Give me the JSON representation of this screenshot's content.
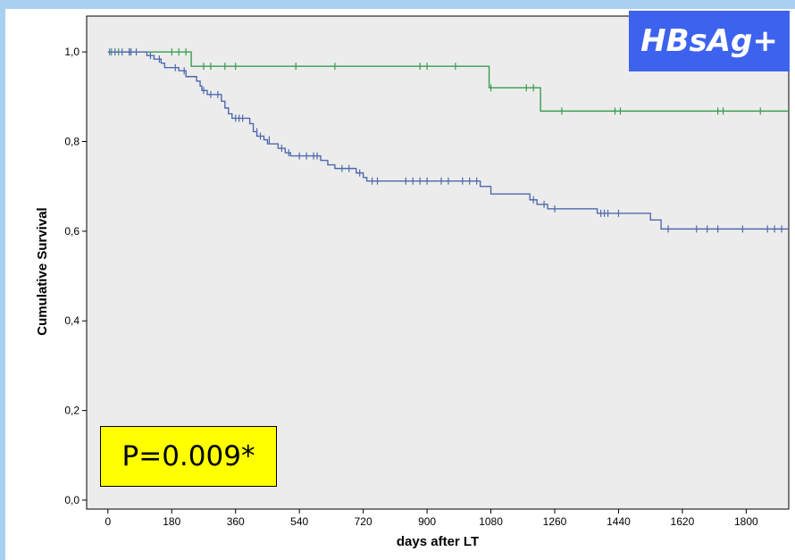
{
  "badge": {
    "text": "HBsAg+",
    "color": "#3d63ee"
  },
  "pvalue_box": {
    "text": "P=0.009*",
    "color": "#ffff00"
  },
  "chart_data": {
    "type": "line",
    "subtype": "kaplan-meier step curves with censoring marks",
    "xlabel": "days after LT",
    "ylabel": "Cumulative Survival",
    "xlim": [
      -60,
      1920
    ],
    "ylim": [
      -0.02,
      1.08
    ],
    "x_ticks": [
      0,
      180,
      360,
      540,
      720,
      900,
      1080,
      1260,
      1440,
      1620,
      1800
    ],
    "y_ticks": [
      0.0,
      0.2,
      0.4,
      0.6,
      0.8,
      1.0
    ],
    "y_tick_labels": [
      "0,0",
      "0,2",
      "0,4",
      "0,6",
      "0,8",
      "1,0"
    ],
    "grid": false,
    "legend": "none",
    "plot_background": "#ececec",
    "series": [
      {
        "color": "#3b9b50",
        "steps": [
          [
            0,
            1.0
          ],
          [
            235,
            0.968
          ],
          [
            1075,
            0.92
          ],
          [
            1220,
            0.868
          ],
          [
            1920,
            0.868
          ]
        ],
        "censored": [
          [
            10,
            1.0
          ],
          [
            30,
            1.0
          ],
          [
            60,
            1.0
          ],
          [
            180,
            1.0
          ],
          [
            200,
            1.0
          ],
          [
            220,
            1.0
          ],
          [
            270,
            0.968
          ],
          [
            290,
            0.968
          ],
          [
            330,
            0.968
          ],
          [
            360,
            0.968
          ],
          [
            530,
            0.968
          ],
          [
            640,
            0.968
          ],
          [
            880,
            0.968
          ],
          [
            900,
            0.968
          ],
          [
            980,
            0.968
          ],
          [
            1080,
            0.92
          ],
          [
            1180,
            0.92
          ],
          [
            1200,
            0.92
          ],
          [
            1280,
            0.868
          ],
          [
            1430,
            0.868
          ],
          [
            1445,
            0.868
          ],
          [
            1720,
            0.868
          ],
          [
            1735,
            0.868
          ],
          [
            1840,
            0.868
          ]
        ]
      },
      {
        "color": "#4f69ad",
        "steps": [
          [
            0,
            1.0
          ],
          [
            110,
            0.992
          ],
          [
            130,
            0.984
          ],
          [
            150,
            0.975
          ],
          [
            160,
            0.965
          ],
          [
            200,
            0.958
          ],
          [
            220,
            0.945
          ],
          [
            250,
            0.935
          ],
          [
            260,
            0.924
          ],
          [
            265,
            0.914
          ],
          [
            280,
            0.905
          ],
          [
            320,
            0.89
          ],
          [
            330,
            0.875
          ],
          [
            340,
            0.862
          ],
          [
            350,
            0.852
          ],
          [
            400,
            0.84
          ],
          [
            410,
            0.822
          ],
          [
            420,
            0.812
          ],
          [
            440,
            0.804
          ],
          [
            450,
            0.795
          ],
          [
            480,
            0.785
          ],
          [
            500,
            0.775
          ],
          [
            515,
            0.768
          ],
          [
            600,
            0.758
          ],
          [
            620,
            0.748
          ],
          [
            640,
            0.74
          ],
          [
            700,
            0.73
          ],
          [
            720,
            0.72
          ],
          [
            730,
            0.712
          ],
          [
            1050,
            0.7
          ],
          [
            1080,
            0.683
          ],
          [
            1190,
            0.67
          ],
          [
            1210,
            0.66
          ],
          [
            1240,
            0.65
          ],
          [
            1380,
            0.64
          ],
          [
            1530,
            0.625
          ],
          [
            1560,
            0.605
          ],
          [
            1920,
            0.605
          ]
        ],
        "censored": [
          [
            5,
            1.0
          ],
          [
            20,
            1.0
          ],
          [
            40,
            1.0
          ],
          [
            60,
            1.0
          ],
          [
            65,
            1.0
          ],
          [
            80,
            1.0
          ],
          [
            120,
            0.992
          ],
          [
            145,
            0.984
          ],
          [
            190,
            0.965
          ],
          [
            215,
            0.958
          ],
          [
            270,
            0.914
          ],
          [
            290,
            0.905
          ],
          [
            310,
            0.905
          ],
          [
            360,
            0.852
          ],
          [
            370,
            0.852
          ],
          [
            380,
            0.852
          ],
          [
            420,
            0.822
          ],
          [
            430,
            0.812
          ],
          [
            455,
            0.804
          ],
          [
            490,
            0.785
          ],
          [
            510,
            0.775
          ],
          [
            540,
            0.768
          ],
          [
            560,
            0.768
          ],
          [
            580,
            0.768
          ],
          [
            590,
            0.768
          ],
          [
            660,
            0.74
          ],
          [
            680,
            0.74
          ],
          [
            710,
            0.73
          ],
          [
            745,
            0.712
          ],
          [
            760,
            0.712
          ],
          [
            840,
            0.712
          ],
          [
            860,
            0.712
          ],
          [
            880,
            0.712
          ],
          [
            900,
            0.712
          ],
          [
            940,
            0.712
          ],
          [
            960,
            0.712
          ],
          [
            1000,
            0.712
          ],
          [
            1020,
            0.712
          ],
          [
            1040,
            0.712
          ],
          [
            1200,
            0.67
          ],
          [
            1230,
            0.66
          ],
          [
            1260,
            0.65
          ],
          [
            1390,
            0.64
          ],
          [
            1400,
            0.64
          ],
          [
            1410,
            0.64
          ],
          [
            1440,
            0.64
          ],
          [
            1580,
            0.605
          ],
          [
            1660,
            0.605
          ],
          [
            1690,
            0.605
          ],
          [
            1720,
            0.605
          ],
          [
            1790,
            0.605
          ],
          [
            1860,
            0.605
          ],
          [
            1880,
            0.605
          ],
          [
            1900,
            0.605
          ]
        ]
      }
    ]
  }
}
